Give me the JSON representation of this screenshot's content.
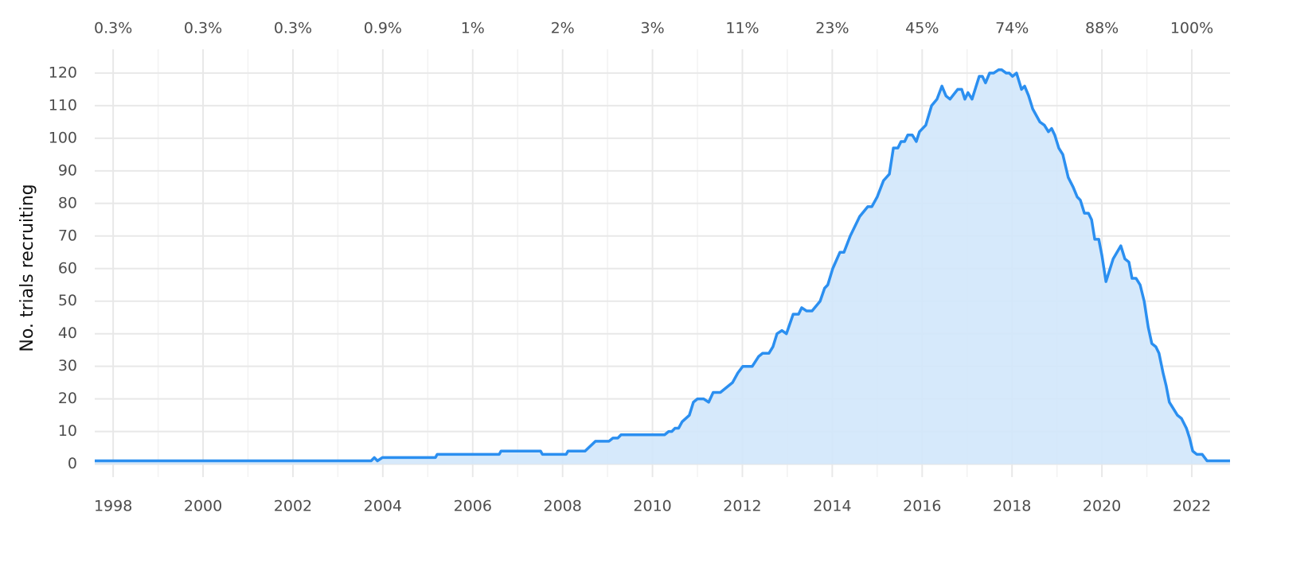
{
  "chart_data": {
    "type": "area",
    "y_label": "No. trials recruiting",
    "color": "#2b8ff0",
    "fill": "#d2e7fb",
    "grid": true,
    "xlim": [
      1997.59,
      2022.85
    ],
    "ylim": [
      -4,
      127.3
    ],
    "xticks": [
      1998,
      2000,
      2002,
      2004,
      2006,
      2008,
      2010,
      2012,
      2014,
      2016,
      2018,
      2020,
      2022
    ],
    "xminor": [
      1999,
      2001,
      2003,
      2005,
      2007,
      2009,
      2011,
      2013,
      2015,
      2017,
      2019,
      2021
    ],
    "x2ticks": [
      {
        "value": 1998,
        "label": "0.3%"
      },
      {
        "value": 2000,
        "label": "0.3%"
      },
      {
        "value": 2002,
        "label": "0.3%"
      },
      {
        "value": 2004,
        "label": "0.9%"
      },
      {
        "value": 2006,
        "label": "1%"
      },
      {
        "value": 2008,
        "label": "2%"
      },
      {
        "value": 2010,
        "label": "3%"
      },
      {
        "value": 2012,
        "label": "11%"
      },
      {
        "value": 2014,
        "label": "23%"
      },
      {
        "value": 2016,
        "label": "45%"
      },
      {
        "value": 2018,
        "label": "74%"
      },
      {
        "value": 2020,
        "label": "88%"
      },
      {
        "value": 2022,
        "label": "100%"
      }
    ],
    "yticks": [
      0,
      10,
      20,
      30,
      40,
      50,
      60,
      70,
      80,
      90,
      100,
      110,
      120
    ],
    "x": [
      1997.59,
      2003.74,
      2003.81,
      2003.88,
      2003.99,
      2005.17,
      2005.21,
      2006.59,
      2006.63,
      2007.51,
      2007.55,
      2008.08,
      2008.12,
      2008.5,
      2008.73,
      2009.03,
      2009.12,
      2009.23,
      2009.3,
      2010.27,
      2010.36,
      2010.43,
      2010.5,
      2010.58,
      2010.66,
      2010.82,
      2010.91,
      2011.0,
      2011.14,
      2011.25,
      2011.35,
      2011.51,
      2011.78,
      2011.9,
      2012.01,
      2012.22,
      2012.36,
      2012.45,
      2012.59,
      2012.68,
      2012.77,
      2012.88,
      2012.98,
      2013.13,
      2013.25,
      2013.32,
      2013.43,
      2013.55,
      2013.73,
      2013.83,
      2013.9,
      2014.01,
      2014.17,
      2014.26,
      2014.4,
      2014.61,
      2014.79,
      2014.88,
      2015.0,
      2015.14,
      2015.27,
      2015.36,
      2015.46,
      2015.53,
      2015.61,
      2015.68,
      2015.78,
      2015.87,
      2015.94,
      2016.08,
      2016.21,
      2016.33,
      2016.44,
      2016.53,
      2016.62,
      2016.79,
      2016.88,
      2016.95,
      2017.02,
      2017.11,
      2017.27,
      2017.34,
      2017.41,
      2017.5,
      2017.59,
      2017.7,
      2017.77,
      2017.87,
      2017.94,
      2018.01,
      2018.1,
      2018.21,
      2018.28,
      2018.37,
      2018.46,
      2018.62,
      2018.72,
      2018.81,
      2018.88,
      2018.95,
      2019.04,
      2019.13,
      2019.25,
      2019.36,
      2019.45,
      2019.52,
      2019.61,
      2019.7,
      2019.77,
      2019.84,
      2019.93,
      2020.0,
      2020.09,
      2020.25,
      2020.42,
      2020.51,
      2020.6,
      2020.67,
      2020.76,
      2020.85,
      2020.94,
      2021.03,
      2021.11,
      2021.2,
      2021.27,
      2021.36,
      2021.43,
      2021.5,
      2021.59,
      2021.68,
      2021.77,
      2021.88,
      2021.95,
      2022.02,
      2022.11,
      2022.23,
      2022.34,
      2022.85
    ],
    "values": [
      1,
      1,
      2,
      1,
      2,
      2,
      3,
      3,
      4,
      4,
      3,
      3,
      4,
      4,
      7,
      7,
      8,
      8,
      9,
      9,
      10,
      10,
      11,
      11,
      13,
      15,
      19,
      20,
      20,
      19,
      22,
      22,
      25,
      28,
      30,
      30,
      33,
      34,
      34,
      36,
      40,
      41,
      40,
      46,
      46,
      48,
      47,
      47,
      50,
      54,
      55,
      60,
      65,
      65,
      70,
      76,
      79,
      79,
      82,
      87,
      89,
      97,
      97,
      99,
      99,
      101,
      101,
      99,
      102,
      104,
      110,
      112,
      116,
      113,
      112,
      115,
      115,
      112,
      114,
      112,
      119,
      119,
      117,
      120,
      120,
      121,
      121,
      120,
      120,
      119,
      120,
      115,
      116,
      113,
      109,
      105,
      104,
      102,
      103,
      101,
      97,
      95,
      88,
      85,
      82,
      81,
      77,
      77,
      75,
      69,
      69,
      64,
      56,
      63,
      67,
      63,
      62,
      57,
      57,
      55,
      50,
      42,
      37,
      36,
      34,
      28,
      24,
      19,
      17,
      15,
      14,
      11,
      8,
      4,
      3,
      3,
      1,
      1
    ]
  }
}
